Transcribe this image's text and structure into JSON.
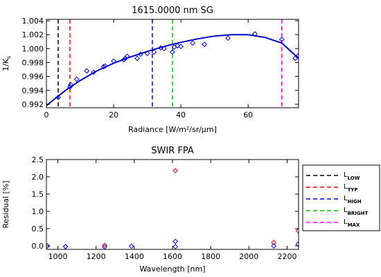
{
  "chart_data": [
    {
      "type": "scatter",
      "title": "1615.0000 nm SG",
      "xlabel": "Radiance [W/m²/sr/μm]",
      "ylabel": "1/K",
      "ylabel_sub": "s",
      "xlim": [
        0,
        75
      ],
      "ylim": [
        0.9915,
        1.0042
      ],
      "xticks": [
        0,
        20,
        40,
        60
      ],
      "yticks": [
        0.992,
        0.994,
        0.996,
        0.998,
        1.0,
        1.002,
        1.004
      ],
      "ytick_labels": [
        "0.992",
        "0.994",
        "0.996",
        "0.998",
        "1.000",
        "1.002",
        "1.004"
      ],
      "points": {
        "x": [
          3.5,
          7,
          7.2,
          9,
          12,
          14,
          17,
          17.5,
          20,
          23,
          23.5,
          24,
          27,
          28,
          30,
          32,
          34,
          35,
          37.5,
          38,
          39,
          40,
          43.5,
          47,
          54,
          62,
          70,
          74,
          75
        ],
        "y": [
          0.993,
          0.9945,
          0.9948,
          0.9956,
          0.9968,
          0.9966,
          0.9974,
          0.9975,
          0.9982,
          0.9984,
          0.9986,
          0.9989,
          0.9986,
          0.9992,
          0.9993,
          0.9995,
          1.0001,
          1.0,
          0.9995,
          1.0002,
          1.0004,
          1.0003,
          1.0008,
          1.0006,
          1.0015,
          1.0021,
          1.0013,
          0.9986,
          0.999
        ],
        "color": "#0000ff",
        "marker": "diamond"
      },
      "fit_curve": {
        "x": [
          0,
          3,
          6,
          10,
          15,
          20,
          25,
          30,
          35,
          40,
          45,
          50,
          55,
          60,
          65,
          70,
          75
        ],
        "y": [
          0.9918,
          0.993,
          0.9941,
          0.9954,
          0.9968,
          0.9979,
          0.9988,
          0.9996,
          1.0003,
          1.0009,
          1.0014,
          1.0018,
          1.002,
          1.002,
          1.0016,
          1.0008,
          0.9986
        ],
        "color": "#0000cc"
      },
      "vlines": [
        {
          "x": 3.5,
          "color": "#000000",
          "label": "L",
          "sub": "LOW"
        },
        {
          "x": 7,
          "color": "#ff0000",
          "label": "L",
          "sub": "TYP"
        },
        {
          "x": 31.5,
          "color": "#0000ff",
          "label": "L",
          "sub": "HIGH"
        },
        {
          "x": 37.5,
          "color": "#00cc00",
          "label": "L",
          "sub": "BRIGHT"
        },
        {
          "x": 70,
          "color": "#ff00ff",
          "label": "L",
          "sub": "MAX"
        }
      ]
    },
    {
      "type": "scatter",
      "title": "SWIR FPA",
      "xlabel": "Wavelength [nm]",
      "ylabel": "Residual [%]",
      "xlim": [
        940,
        2260
      ],
      "ylim": [
        -0.1,
        2.5
      ],
      "xticks": [
        1000,
        1200,
        1400,
        1600,
        1800,
        2000,
        2200
      ],
      "yticks": [
        0.0,
        0.5,
        1.0,
        1.5,
        2.0,
        2.5
      ],
      "ytick_labels": [
        "0.0",
        "0.5",
        "1.0",
        "1.5",
        "2.0",
        "2.5"
      ],
      "series": [
        {
          "color": "#ff0000",
          "x": [
            945,
            1040,
            1245,
            1615,
            2130,
            2258
          ],
          "y": [
            0.0,
            -0.02,
            0.02,
            2.18,
            0.1,
            0.44
          ]
        },
        {
          "color": "#0000ff",
          "x": [
            945,
            1040,
            1245,
            1385,
            1615,
            1615,
            2130,
            2258
          ],
          "y": [
            0.0,
            -0.02,
            -0.03,
            -0.01,
            0.13,
            -0.02,
            0.0,
            0.05
          ]
        }
      ],
      "legend_placement": "right"
    }
  ]
}
